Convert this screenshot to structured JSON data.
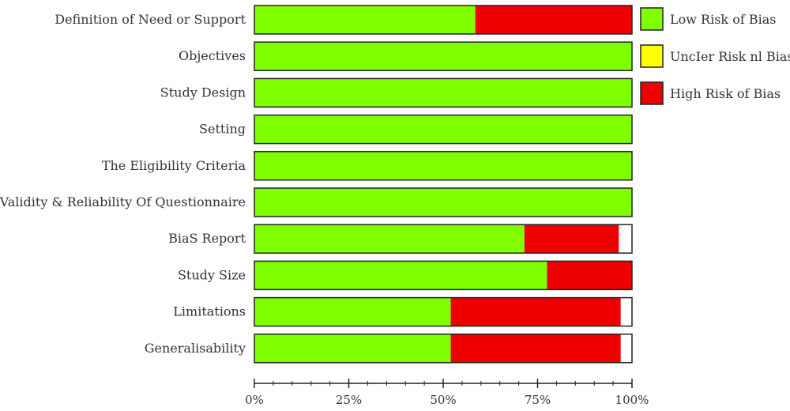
{
  "chart_data": {
    "type": "bar",
    "orientation": "horizontal",
    "stacked": true,
    "percent": true,
    "categories": [
      "Definition of Need or Support",
      "Objectives",
      "Study Design",
      "Setting",
      "The Eligibility Criteria",
      "Validity & Reliability Of Questionnaire",
      "BiaS Report",
      "Study Size",
      "Limitations",
      "Generalisability"
    ],
    "series": [
      {
        "name": "Low Risk of Bias",
        "color": "#80ff00",
        "values": [
          58.5,
          100,
          100,
          100,
          100,
          100,
          71.5,
          77.5,
          52,
          52
        ]
      },
      {
        "name": "UncIer Risk nl Bias",
        "color": "#ffff00",
        "values": [
          0,
          0,
          0,
          0,
          0,
          0,
          0,
          0,
          0,
          0
        ]
      },
      {
        "name": "High Risk of Bias",
        "color": "#ee0000",
        "values": [
          41.5,
          0,
          0,
          0,
          0,
          0,
          25,
          22.5,
          45,
          45
        ]
      }
    ],
    "x_ticks": [
      "0%",
      "25%",
      "50%",
      "75%",
      "100%"
    ],
    "xlim": [
      0,
      100
    ],
    "title": "",
    "xlabel": "",
    "ylabel": "",
    "grid": false,
    "legend_position": "top-right"
  }
}
